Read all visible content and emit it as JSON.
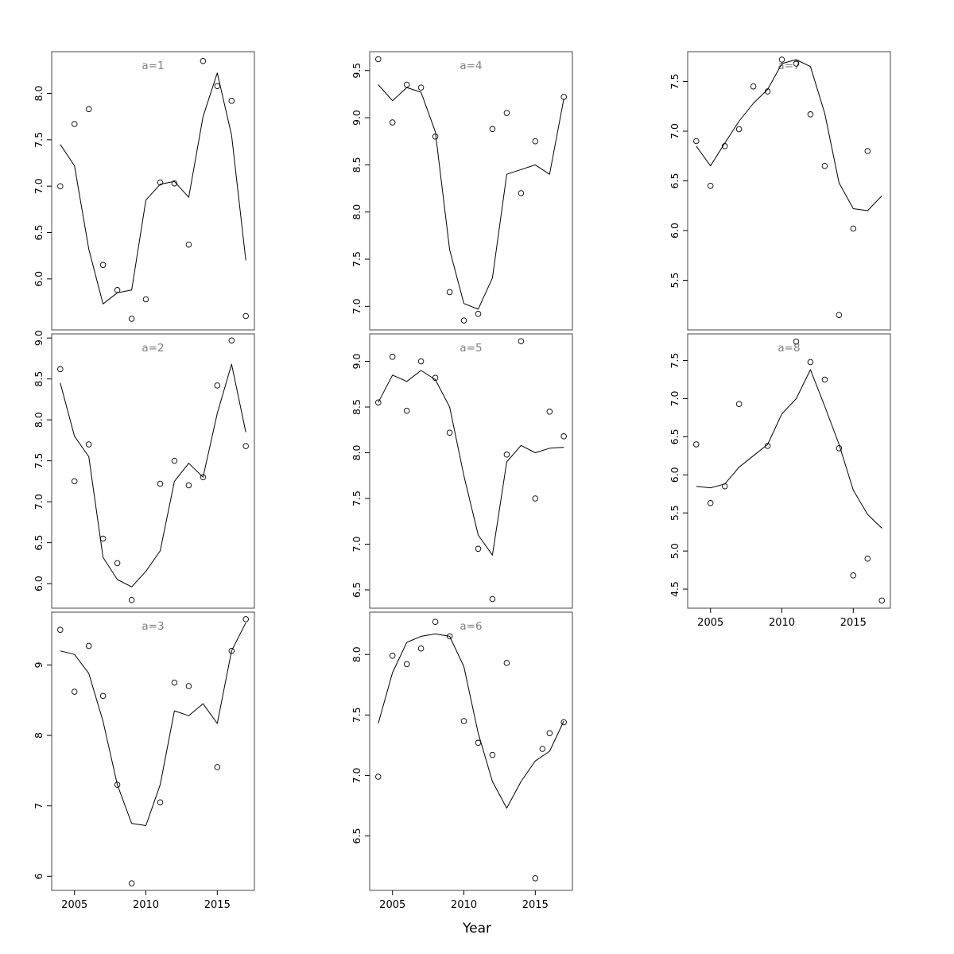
{
  "figure": {
    "xlabel": "Year",
    "background": "#ffffff",
    "panel_label_color": "#7f7f7f",
    "line_color": "#000000",
    "point_color": "#000000",
    "border_color": "#444444",
    "xlim": [
      2003.4,
      2017.6
    ],
    "xticks": [
      2005,
      2010,
      2015
    ],
    "xtick_labels": [
      "2005",
      "2010",
      "2015"
    ],
    "legend": "none",
    "grid": "off"
  },
  "chart_data": [
    {
      "type": "scatter",
      "label": "a=1",
      "row": 0,
      "col": 0,
      "show_x_axis": false,
      "ylim": [
        5.45,
        8.45
      ],
      "yticks": [
        6.0,
        6.5,
        7.0,
        7.5,
        8.0
      ],
      "ytick_labels": [
        "6.0",
        "6.5",
        "7.0",
        "7.5",
        "8.0"
      ],
      "points": {
        "x": [
          2004,
          2005,
          2006,
          2007,
          2008,
          2009,
          2010,
          2011,
          2012,
          2013,
          2014,
          2015,
          2016,
          2017
        ],
        "y": [
          7.0,
          7.67,
          7.83,
          6.15,
          5.88,
          5.57,
          5.78,
          7.04,
          7.03,
          6.37,
          8.35,
          8.08,
          7.92,
          5.6
        ]
      },
      "line": {
        "x": [
          2004,
          2005,
          2006,
          2007,
          2008,
          2009,
          2010,
          2011,
          2012,
          2013,
          2014,
          2015,
          2016,
          2017
        ],
        "y": [
          7.45,
          7.22,
          6.32,
          5.73,
          5.85,
          5.88,
          6.85,
          7.02,
          7.05,
          6.88,
          7.75,
          8.22,
          7.55,
          6.2
        ]
      }
    },
    {
      "type": "scatter",
      "label": "a=2",
      "row": 1,
      "col": 0,
      "show_x_axis": false,
      "ylim": [
        5.7,
        9.05
      ],
      "yticks": [
        6.0,
        6.5,
        7.0,
        7.5,
        8.0,
        8.5,
        9.0
      ],
      "ytick_labels": [
        "6.0",
        "6.5",
        "7.0",
        "7.5",
        "8.0",
        "8.5",
        "9.0"
      ],
      "points": {
        "x": [
          2004,
          2005,
          2006,
          2007,
          2008,
          2009,
          2011,
          2012,
          2013,
          2014,
          2015,
          2016,
          2017
        ],
        "y": [
          8.62,
          7.25,
          7.7,
          6.55,
          6.25,
          5.8,
          7.22,
          7.5,
          7.2,
          7.3,
          8.42,
          8.97,
          7.68
        ]
      },
      "line": {
        "x": [
          2004,
          2005,
          2006,
          2007,
          2008,
          2009,
          2010,
          2011,
          2012,
          2013,
          2014,
          2015,
          2016,
          2017
        ],
        "y": [
          8.45,
          7.8,
          7.55,
          6.32,
          6.05,
          5.96,
          6.15,
          6.4,
          7.25,
          7.47,
          7.3,
          8.08,
          8.68,
          7.85
        ]
      }
    },
    {
      "type": "scatter",
      "label": "a=3",
      "row": 2,
      "col": 0,
      "show_x_axis": true,
      "ylim": [
        5.8,
        9.75
      ],
      "yticks": [
        6,
        7,
        8,
        9
      ],
      "ytick_labels": [
        "6",
        "7",
        "8",
        "9"
      ],
      "points": {
        "x": [
          2004,
          2005,
          2006,
          2007,
          2008,
          2009,
          2011,
          2012,
          2013,
          2015,
          2016,
          2017
        ],
        "y": [
          9.5,
          8.62,
          9.27,
          8.56,
          7.3,
          5.9,
          7.05,
          8.75,
          8.7,
          7.55,
          9.2,
          9.65
        ]
      },
      "line": {
        "x": [
          2004,
          2005,
          2006,
          2007,
          2008,
          2009,
          2010,
          2011,
          2012,
          2013,
          2014,
          2015,
          2016,
          2017
        ],
        "y": [
          9.2,
          9.15,
          8.88,
          8.2,
          7.3,
          6.75,
          6.72,
          7.3,
          8.35,
          8.28,
          8.45,
          8.17,
          9.2,
          9.6
        ]
      }
    },
    {
      "type": "scatter",
      "label": "a=4",
      "row": 0,
      "col": 1,
      "show_x_axis": false,
      "ylim": [
        6.75,
        9.7
      ],
      "yticks": [
        7.0,
        7.5,
        8.0,
        8.5,
        9.0,
        9.5
      ],
      "ytick_labels": [
        "7.0",
        "7.5",
        "8.0",
        "8.5",
        "9.0",
        "9.5"
      ],
      "points": {
        "x": [
          2004,
          2005,
          2006,
          2007,
          2008,
          2009,
          2010,
          2011,
          2012,
          2013,
          2014,
          2015,
          2017
        ],
        "y": [
          9.62,
          8.95,
          9.35,
          9.32,
          8.8,
          7.15,
          6.85,
          6.92,
          8.88,
          9.05,
          8.2,
          8.75,
          9.22
        ]
      },
      "line": {
        "x": [
          2004,
          2005,
          2006,
          2007,
          2008,
          2009,
          2010,
          2011,
          2012,
          2013,
          2014,
          2015,
          2016,
          2017
        ],
        "y": [
          9.35,
          9.18,
          9.32,
          9.27,
          8.85,
          7.6,
          7.03,
          6.97,
          7.3,
          8.4,
          8.45,
          8.5,
          8.4,
          9.2
        ]
      }
    },
    {
      "type": "scatter",
      "label": "a=5",
      "row": 1,
      "col": 1,
      "show_x_axis": false,
      "ylim": [
        6.3,
        9.3
      ],
      "yticks": [
        6.5,
        7.0,
        7.5,
        8.0,
        8.5,
        9.0
      ],
      "ytick_labels": [
        "6.5",
        "7.0",
        "7.5",
        "8.0",
        "8.5",
        "9.0"
      ],
      "points": {
        "x": [
          2004,
          2005,
          2006,
          2007,
          2008,
          2009,
          2011,
          2012,
          2013,
          2014,
          2015,
          2016,
          2017
        ],
        "y": [
          8.55,
          9.05,
          8.46,
          9.0,
          8.82,
          8.22,
          6.95,
          6.4,
          7.98,
          9.22,
          7.5,
          8.45,
          8.18
        ]
      },
      "line": {
        "x": [
          2004,
          2005,
          2006,
          2007,
          2008,
          2009,
          2010,
          2011,
          2012,
          2013,
          2014,
          2015,
          2016,
          2017
        ],
        "y": [
          8.55,
          8.85,
          8.78,
          8.9,
          8.8,
          8.5,
          7.75,
          7.1,
          6.88,
          7.9,
          8.08,
          8.0,
          8.05,
          8.06
        ]
      }
    },
    {
      "type": "scatter",
      "label": "a=6",
      "row": 2,
      "col": 1,
      "show_x_axis": true,
      "ylim": [
        6.05,
        8.35
      ],
      "yticks": [
        6.5,
        7.0,
        7.5,
        8.0
      ],
      "ytick_labels": [
        "6.5",
        "7.0",
        "7.5",
        "8.0"
      ],
      "points": {
        "x": [
          2004,
          2005,
          2006,
          2007,
          2008,
          2009,
          2010,
          2011,
          2012,
          2013,
          2015,
          2015.5,
          2016,
          2017
        ],
        "y": [
          6.99,
          7.99,
          7.92,
          8.05,
          8.27,
          8.15,
          7.45,
          7.27,
          7.17,
          7.93,
          6.15,
          7.22,
          7.35,
          7.44
        ]
      },
      "line": {
        "x": [
          2004,
          2005,
          2006,
          2007,
          2008,
          2009,
          2010,
          2011,
          2012,
          2013,
          2014,
          2015,
          2016,
          2017
        ],
        "y": [
          7.43,
          7.85,
          8.1,
          8.15,
          8.17,
          8.15,
          7.9,
          7.35,
          6.95,
          6.73,
          6.95,
          7.12,
          7.2,
          7.45
        ]
      }
    },
    {
      "type": "scatter",
      "label": "a=7",
      "row": 0,
      "col": 2,
      "show_x_axis": false,
      "ylim": [
        5.0,
        7.8
      ],
      "yticks": [
        5.5,
        6.0,
        6.5,
        7.0,
        7.5
      ],
      "ytick_labels": [
        "5.5",
        "6.0",
        "6.5",
        "7.0",
        "7.5"
      ],
      "points": {
        "x": [
          2004,
          2005,
          2006,
          2007,
          2008,
          2009,
          2010,
          2011,
          2012,
          2013,
          2014,
          2015,
          2016
        ],
        "y": [
          6.9,
          6.45,
          6.85,
          7.02,
          7.45,
          7.4,
          7.72,
          7.68,
          7.17,
          6.65,
          5.15,
          6.02,
          6.8
        ]
      },
      "line": {
        "x": [
          2004,
          2005,
          2006,
          2007,
          2008,
          2009,
          2010,
          2011,
          2012,
          2013,
          2014,
          2015,
          2016,
          2017
        ],
        "y": [
          6.85,
          6.65,
          6.88,
          7.1,
          7.28,
          7.42,
          7.68,
          7.72,
          7.65,
          7.18,
          6.48,
          6.22,
          6.2,
          6.35
        ]
      }
    },
    {
      "type": "scatter",
      "label": "a=8",
      "row": 1,
      "col": 2,
      "show_x_axis": true,
      "ylim": [
        4.25,
        7.85
      ],
      "yticks": [
        4.5,
        5.0,
        5.5,
        6.0,
        6.5,
        7.0,
        7.5
      ],
      "ytick_labels": [
        "4.5",
        "5.0",
        "5.5",
        "6.0",
        "6.5",
        "7.0",
        "7.5"
      ],
      "points": {
        "x": [
          2004,
          2005,
          2006,
          2007,
          2009,
          2011,
          2012,
          2013,
          2014,
          2015,
          2016,
          2017
        ],
        "y": [
          6.4,
          5.63,
          5.85,
          6.93,
          6.38,
          7.75,
          7.48,
          7.25,
          6.35,
          4.68,
          4.9,
          4.35
        ]
      },
      "line": {
        "x": [
          2004,
          2005,
          2006,
          2007,
          2008,
          2009,
          2010,
          2011,
          2012,
          2013,
          2014,
          2015,
          2016,
          2017
        ],
        "y": [
          5.85,
          5.83,
          5.88,
          6.1,
          6.25,
          6.4,
          6.8,
          7.0,
          7.38,
          6.9,
          6.4,
          5.8,
          5.48,
          5.3
        ]
      }
    }
  ]
}
